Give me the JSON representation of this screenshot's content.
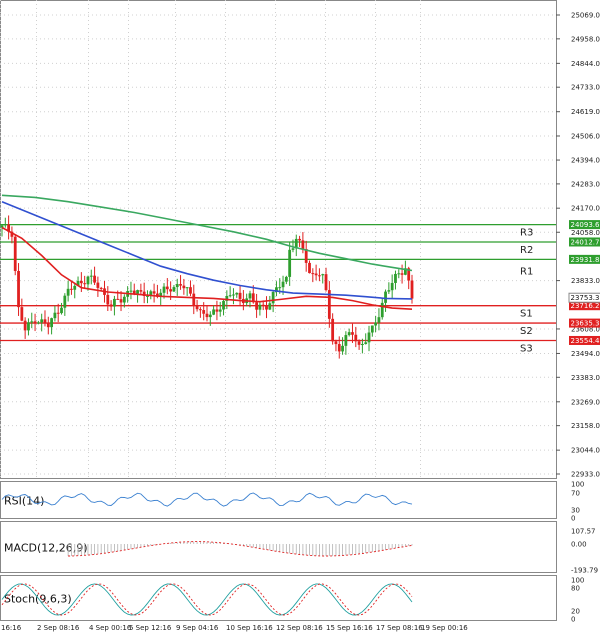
{
  "chart_data": {
    "type": "candlestick",
    "instrument_note": "",
    "y_axis": {
      "min": 22933.0,
      "max": 25069.0,
      "tick_labels": [
        "25069.0",
        "24958.0",
        "24844.0",
        "24733.0",
        "24619.0",
        "24506.0",
        "24394.0",
        "24283.0",
        "24170.0",
        "24058.0",
        "23833.0",
        "23608.0",
        "23494.0",
        "23383.0",
        "23269.0",
        "23158.0",
        "23044.0",
        "22933.0"
      ]
    },
    "x_axis": {
      "tick_labels": [
        "16:16",
        "2 Sep 08:16",
        "4 Sep 00:16",
        "5 Sep 12:16",
        "9 Sep 04:16",
        "10 Sep 16:16",
        "12 Sep 08:16",
        "15 Sep 16:16",
        "17 Sep 08:16",
        "19 Sep 00:16"
      ]
    },
    "levels": [
      {
        "name": "R3",
        "value": 24093.6,
        "label": "24093.6",
        "color": "#2e9e2e"
      },
      {
        "name": "R2",
        "value": 24012.7,
        "label": "24012.7",
        "color": "#2e9e2e"
      },
      {
        "name": "R1",
        "value": 23931.8,
        "label": "23931.8",
        "color": "#2e9e2e"
      },
      {
        "name": "S1",
        "value": 23716.2,
        "label": "23716.2",
        "color": "#e02020"
      },
      {
        "name": "S2",
        "value": 23635.3,
        "label": "23635.3",
        "color": "#e02020"
      },
      {
        "name": "S3",
        "value": 23554.4,
        "label": "23554.4",
        "color": "#e02020"
      }
    ],
    "current_price": {
      "value": 23753.3,
      "label": "23753.3"
    },
    "series": [
      {
        "name": "MA fast",
        "color": "#e02020",
        "points": [
          [
            0,
            24080
          ],
          [
            6,
            24030
          ],
          [
            12,
            23950
          ],
          [
            18,
            23860
          ],
          [
            24,
            23800
          ],
          [
            32,
            23780
          ],
          [
            40,
            23770
          ],
          [
            48,
            23760
          ],
          [
            56,
            23755
          ],
          [
            64,
            23750
          ],
          [
            72,
            23740
          ],
          [
            78,
            23735
          ],
          [
            84,
            23745
          ],
          [
            92,
            23760
          ],
          [
            100,
            23755
          ],
          [
            106,
            23740
          ],
          [
            112,
            23720
          ],
          [
            118,
            23705
          ],
          [
            124,
            23700
          ]
        ]
      },
      {
        "name": "MA medium",
        "color": "#3050d0",
        "points": [
          [
            0,
            24200
          ],
          [
            8,
            24150
          ],
          [
            16,
            24100
          ],
          [
            24,
            24050
          ],
          [
            32,
            24000
          ],
          [
            40,
            23950
          ],
          [
            48,
            23900
          ],
          [
            56,
            23865
          ],
          [
            64,
            23835
          ],
          [
            72,
            23810
          ],
          [
            80,
            23790
          ],
          [
            88,
            23775
          ],
          [
            96,
            23770
          ],
          [
            104,
            23765
          ],
          [
            110,
            23758
          ],
          [
            116,
            23750
          ],
          [
            124,
            23748
          ]
        ]
      },
      {
        "name": "MA slow",
        "color": "#3aa860",
        "points": [
          [
            0,
            24230
          ],
          [
            10,
            24220
          ],
          [
            20,
            24200
          ],
          [
            30,
            24175
          ],
          [
            40,
            24150
          ],
          [
            50,
            24120
          ],
          [
            60,
            24090
          ],
          [
            70,
            24060
          ],
          [
            80,
            24025
          ],
          [
            88,
            23990
          ],
          [
            96,
            23960
          ],
          [
            104,
            23935
          ],
          [
            112,
            23910
          ],
          [
            120,
            23890
          ],
          [
            124,
            23880
          ]
        ]
      }
    ],
    "candles": {
      "count": 125,
      "anchors": [
        [
          0,
          24080
        ],
        [
          3,
          24060
        ],
        [
          5,
          23700
        ],
        [
          7,
          23600
        ],
        [
          10,
          23660
        ],
        [
          14,
          23620
        ],
        [
          17,
          23700
        ],
        [
          20,
          23780
        ],
        [
          23,
          23820
        ],
        [
          26,
          23850
        ],
        [
          30,
          23790
        ],
        [
          33,
          23720
        ],
        [
          36,
          23740
        ],
        [
          39,
          23800
        ],
        [
          42,
          23760
        ],
        [
          45,
          23780
        ],
        [
          48,
          23770
        ],
        [
          51,
          23800
        ],
        [
          54,
          23820
        ],
        [
          57,
          23760
        ],
        [
          60,
          23690
        ],
        [
          63,
          23660
        ],
        [
          66,
          23720
        ],
        [
          69,
          23770
        ],
        [
          72,
          23750
        ],
        [
          75,
          23760
        ],
        [
          77,
          23700
        ],
        [
          80,
          23720
        ],
        [
          83,
          23790
        ],
        [
          86,
          23840
        ],
        [
          87,
          23990
        ],
        [
          89,
          24020
        ],
        [
          91,
          23980
        ],
        [
          93,
          23860
        ],
        [
          95,
          23880
        ],
        [
          97,
          23840
        ],
        [
          98,
          23780
        ],
        [
          100,
          23550
        ],
        [
          102,
          23520
        ],
        [
          104,
          23560
        ],
        [
          106,
          23590
        ],
        [
          108,
          23530
        ],
        [
          110,
          23560
        ],
        [
          112,
          23600
        ],
        [
          114,
          23680
        ],
        [
          116,
          23780
        ],
        [
          118,
          23820
        ],
        [
          120,
          23860
        ],
        [
          122,
          23900
        ],
        [
          124,
          23753
        ]
      ],
      "spread": 70
    },
    "indicators": [
      {
        "name": "RSI(14)",
        "levels": [
          "70",
          "30"
        ],
        "label_levels": [
          "100",
          "70",
          "30",
          "0"
        ]
      },
      {
        "name": "MACD(12,26,9)",
        "label_levels": [
          "107.57",
          "0.00",
          "-193.79"
        ]
      },
      {
        "name": "Stoch(9,6,3)",
        "label_levels": [
          "100",
          "80",
          "20",
          "0"
        ]
      }
    ]
  }
}
